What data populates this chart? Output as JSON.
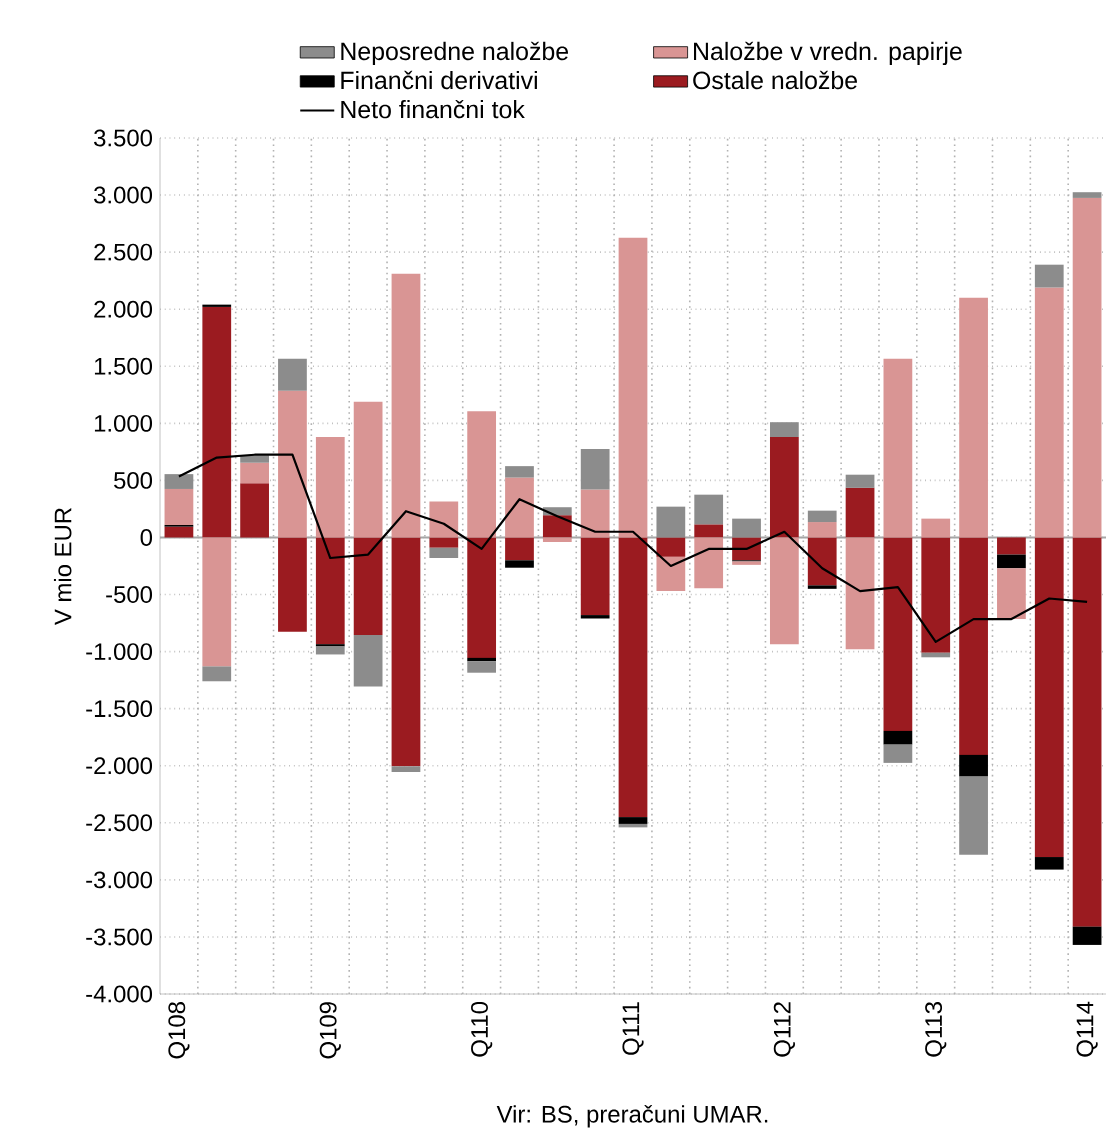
{
  "chart_data": {
    "type": "bar",
    "stacked": true,
    "ylabel": "V mio EUR",
    "annotations": [
      "Vir: BS, preračuni UMAR."
    ],
    "categories": [
      "Q108",
      null,
      null,
      null,
      "Q109",
      null,
      null,
      null,
      "Q110",
      null,
      null,
      null,
      "Q111",
      null,
      null,
      null,
      "Q112",
      null,
      null,
      null,
      "Q113",
      null,
      null,
      null,
      "Q114"
    ],
    "series": [
      {
        "name": "Ostale naložbe",
        "color": "#9b1b20",
        "values": [
          95,
          2020,
          475,
          -825,
          -935,
          -855,
          -2005,
          -90,
          -1055,
          -200,
          195,
          -680,
          -2450,
          -170,
          115,
          -200,
          880,
          -420,
          435,
          -1695,
          -1010,
          -1905,
          -150,
          -2800,
          -3410
        ]
      },
      {
        "name": "Finančni derivativi",
        "color": "#000000",
        "values": [
          15,
          20,
          0,
          0,
          -20,
          0,
          0,
          0,
          -30,
          -65,
          0,
          -30,
          -60,
          0,
          0,
          -10,
          0,
          -30,
          0,
          -120,
          0,
          -190,
          -120,
          -110,
          -160
        ]
      },
      {
        "name": "Naložbe v vredn. papirje",
        "color": "#d99594",
        "values": [
          315,
          -1130,
          180,
          1285,
          880,
          1190,
          2310,
          315,
          1105,
          525,
          -40,
          420,
          2625,
          -300,
          -445,
          -30,
          -935,
          135,
          -980,
          1565,
          165,
          2100,
          -445,
          2190,
          2975
        ]
      },
      {
        "name": "Neposredne naložbe",
        "color": "#8c8c8c",
        "values": [
          130,
          -130,
          65,
          280,
          -70,
          -450,
          -50,
          -90,
          -100,
          100,
          70,
          355,
          -30,
          270,
          260,
          165,
          130,
          100,
          115,
          -160,
          -40,
          -685,
          0,
          200,
          50
        ]
      },
      {
        "name": "Neto finančni tok",
        "type": "line",
        "color": "#000000",
        "values": [
          535,
          700,
          725,
          725,
          -180,
          -150,
          230,
          120,
          -100,
          335,
          185,
          50,
          50,
          -250,
          -100,
          -100,
          50,
          -270,
          -470,
          -435,
          -915,
          -715,
          -715,
          -535,
          -565
        ]
      }
    ],
    "ylim": [
      -4000,
      3500
    ],
    "yticks": [
      {
        "value": -4000,
        "label": "-4.000"
      },
      {
        "value": -3500,
        "label": "-3.500"
      },
      {
        "value": -3000,
        "label": "-3.000"
      },
      {
        "value": -2500,
        "label": "-2.500"
      },
      {
        "value": -2000,
        "label": "-2.000"
      },
      {
        "value": -1500,
        "label": "-1.500"
      },
      {
        "value": -1000,
        "label": "-1.000"
      },
      -500,
      0,
      500,
      {
        "value": 1000,
        "label": "1.000"
      },
      {
        "value": 1500,
        "label": "1.500"
      },
      {
        "value": 2000,
        "label": "2.000"
      },
      {
        "value": 2500,
        "label": "2.500"
      },
      {
        "value": 3000,
        "label": "3.000"
      },
      {
        "value": 3500,
        "label": "3.500"
      }
    ],
    "grid": true,
    "legend": "top",
    "marker": "none",
    "line_style": "solid"
  }
}
